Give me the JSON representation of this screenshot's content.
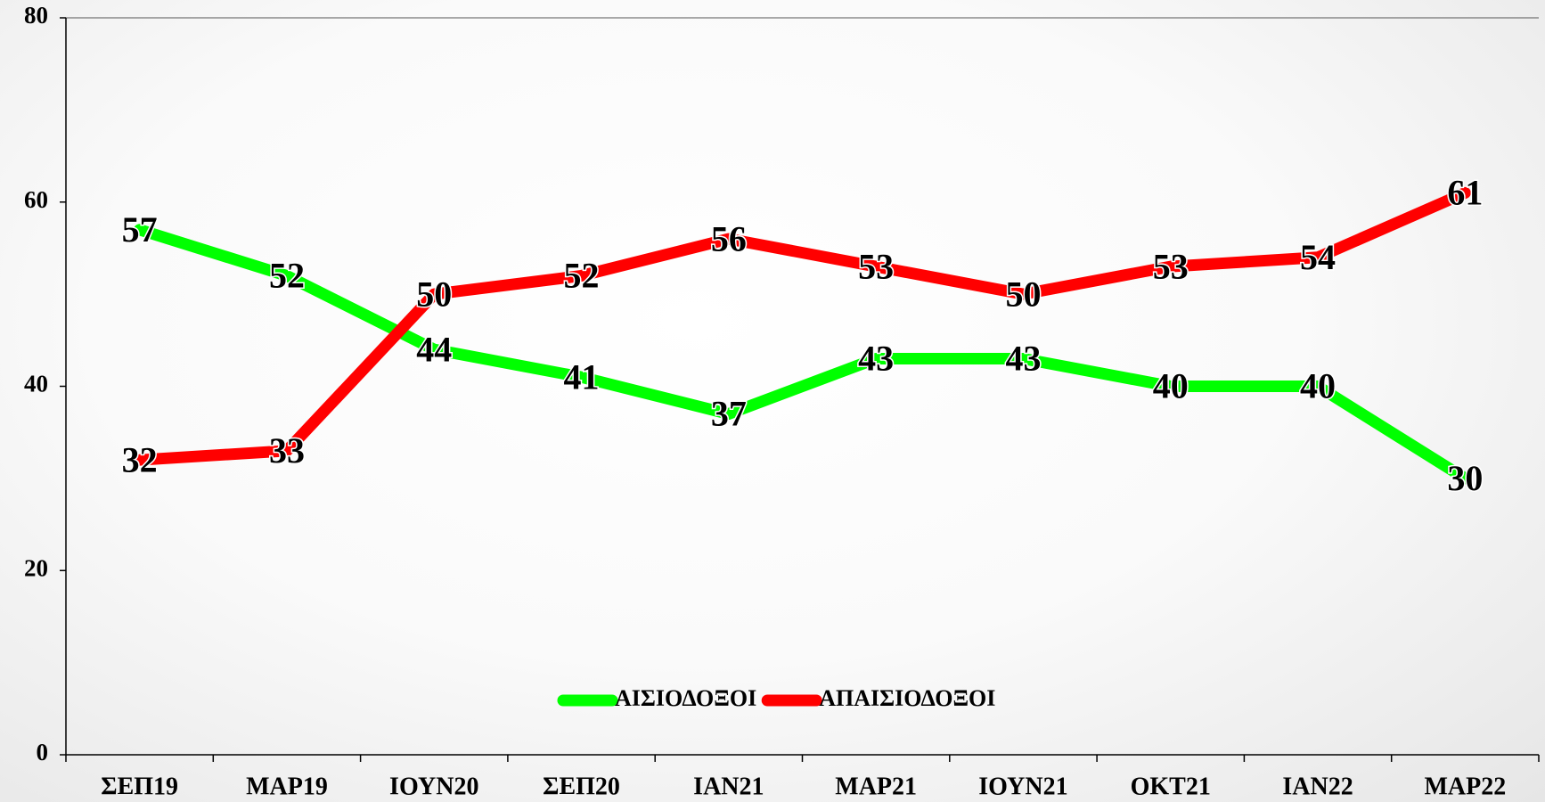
{
  "chart_data": {
    "type": "line",
    "categories": [
      "ΣΕΠ19",
      "ΜΑΡ19",
      "ΙΟΥΝ20",
      "ΣΕΠ20",
      "ΙΑΝ21",
      "ΜΑΡ21",
      "ΙΟΥΝ21",
      "ΟΚΤ21",
      "ΙΑΝ22",
      "ΜΑΡ22"
    ],
    "series": [
      {
        "name": "ΑΙΣΙΟΔΟΞΟΙ",
        "color": "#00ff00",
        "values": [
          57,
          52,
          44,
          41,
          37,
          43,
          43,
          40,
          40,
          30
        ]
      },
      {
        "name": "ΑΠΑΙΣΙΟΔΟΞΟΙ",
        "color": "#ff0000",
        "values": [
          32,
          33,
          50,
          52,
          56,
          53,
          50,
          53,
          54,
          61
        ]
      }
    ],
    "ylim": [
      0,
      80
    ],
    "yticks": [
      0,
      20,
      40,
      60,
      80
    ],
    "legend": "bottom"
  }
}
